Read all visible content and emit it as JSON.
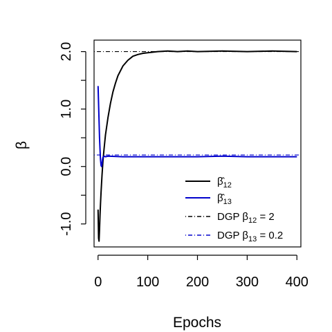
{
  "chart_data": {
    "type": "line",
    "xlabel": "Epochs",
    "ylabel": "β",
    "xlim": [
      -8,
      408
    ],
    "ylim": [
      -1.4,
      2.2
    ],
    "x_ticks": [
      0,
      100,
      200,
      300,
      400
    ],
    "x_tick_labels": [
      "0",
      "100",
      "200",
      "300",
      "400"
    ],
    "y_ticks": [
      -1.0,
      0.0,
      1.0,
      2.0
    ],
    "y_tick_labels": [
      "-1.0",
      "0.0",
      "1.0",
      "2.0"
    ],
    "grid": false,
    "legend_position": "bottom-right",
    "series": [
      {
        "name": "β̂12",
        "style": "solid",
        "color": "#000000",
        "x": [
          0,
          1,
          2,
          3,
          4,
          5,
          6,
          8,
          10,
          12,
          15,
          20,
          25,
          30,
          35,
          40,
          50,
          60,
          70,
          80,
          90,
          100,
          120,
          140,
          160,
          180,
          200,
          250,
          300,
          350,
          400
        ],
        "y": [
          -0.75,
          -1.25,
          -1.3,
          -1.1,
          -0.85,
          -0.65,
          -0.45,
          -0.15,
          0.1,
          0.3,
          0.55,
          0.85,
          1.1,
          1.3,
          1.45,
          1.58,
          1.75,
          1.85,
          1.92,
          1.95,
          1.97,
          1.98,
          2.0,
          2.01,
          2.0,
          2.01,
          2.0,
          2.01,
          2.0,
          2.01,
          2.0
        ]
      },
      {
        "name": "β̂13",
        "style": "solid",
        "color": "#0000cc",
        "x": [
          0,
          1,
          2,
          3,
          4,
          5,
          6,
          7,
          8,
          9,
          10,
          12,
          15,
          20,
          50,
          100,
          150,
          200,
          250,
          300,
          350,
          400
        ],
        "y": [
          1.4,
          1.1,
          0.8,
          0.5,
          0.3,
          0.12,
          0.02,
          0.0,
          0.05,
          0.12,
          0.16,
          0.18,
          0.17,
          0.18,
          0.17,
          0.17,
          0.17,
          0.17,
          0.18,
          0.17,
          0.17,
          0.17
        ]
      },
      {
        "name": "DGP β12 = 2",
        "style": "dotdash",
        "color": "#000000",
        "hline": 2
      },
      {
        "name": "DGP β13 = 0.2",
        "style": "dotdash",
        "color": "#0000cc",
        "hline": 0.2
      }
    ],
    "legend": [
      {
        "label_main": "β̂",
        "label_sub": "12",
        "label_tail": "",
        "color": "#000000",
        "style": "solid"
      },
      {
        "label_main": "β̂",
        "label_sub": "13",
        "label_tail": "",
        "color": "#0000cc",
        "style": "solid"
      },
      {
        "label_main": "DGP β",
        "label_sub": "12",
        "label_tail": " = 2",
        "color": "#000000",
        "style": "dotdash"
      },
      {
        "label_main": "DGP β",
        "label_sub": "13",
        "label_tail": " = 0.2",
        "color": "#0000cc",
        "style": "dotdash"
      }
    ]
  }
}
